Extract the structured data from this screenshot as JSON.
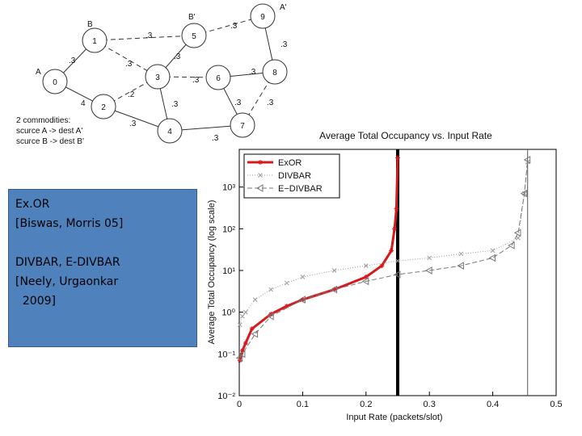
{
  "diagram": {
    "nodes": [
      "0",
      "1",
      "2",
      "3",
      "4",
      "5",
      "6",
      "7",
      "8",
      "9"
    ],
    "tags": [
      "A",
      "B",
      "B'",
      "A'"
    ],
    "edge_labels": [
      ".3",
      "4",
      ".3",
      ".3",
      ".3",
      ".3",
      ".3",
      ".3",
      ".3",
      ".2",
      ".3",
      ".3",
      ".3",
      ".3",
      ".3"
    ],
    "caption": [
      "2 commodities:",
      "scurce A -> dest A'",
      "scurce B -> dest B'"
    ]
  },
  "textbox": {
    "lines": [
      "Ex.OR",
      "[Biswas, Morris 05]",
      "DIVBAR, E-DIVBAR",
      "[Neely, Urgaonkar",
      "  2009]"
    ]
  },
  "chart_data": {
    "type": "line",
    "title": "Average Total Occupancy vs. Input Rate",
    "x_label": "Input Rate (packets/slot)",
    "y_label": "Average Total Occupancy (log scale)",
    "log_y": true,
    "legend": "upper left",
    "xlim": [
      0,
      0.5
    ],
    "xticks": [
      0,
      0.1,
      0.2,
      0.3,
      0.4,
      0.5
    ],
    "ylim": [
      0.01,
      8000
    ],
    "yticks": [
      {
        "value": 0.01,
        "label": "10⁻²"
      },
      {
        "value": 0.1,
        "label": "10⁻¹"
      },
      {
        "value": 1,
        "label": "10⁰"
      },
      {
        "value": 10,
        "label": "10¹"
      },
      {
        "value": 100,
        "label": "10²"
      },
      {
        "value": 1000,
        "label": "10³"
      }
    ],
    "vlines": [
      0.25,
      0.455
    ],
    "series": [
      {
        "name": "ExOR",
        "color": "#d7191c",
        "x": [
          0.001,
          0.005,
          0.01,
          0.02,
          0.05,
          0.075,
          0.1,
          0.15,
          0.2,
          0.225,
          0.24,
          0.245,
          0.248,
          0.25
        ],
        "values": [
          0.07,
          0.12,
          0.18,
          0.4,
          0.9,
          1.4,
          2,
          3.5,
          7,
          13,
          30,
          100,
          300,
          5000
        ]
      },
      {
        "name": "DIVBAR",
        "color": "#999999",
        "x": [
          0.001,
          0.005,
          0.01,
          0.025,
          0.05,
          0.075,
          0.1,
          0.15,
          0.2,
          0.25,
          0.3,
          0.35,
          0.4,
          0.44,
          0.45,
          0.455
        ],
        "values": [
          0.5,
          0.8,
          1,
          2,
          3.5,
          5,
          7,
          10,
          13,
          17,
          20,
          25,
          30,
          60,
          700,
          4000
        ]
      },
      {
        "name": "E−DIVBAR",
        "color": "#777777",
        "x": [
          0.001,
          0.005,
          0.025,
          0.05,
          0.1,
          0.15,
          0.2,
          0.25,
          0.3,
          0.35,
          0.4,
          0.43,
          0.44,
          0.45,
          0.455
        ],
        "values": [
          0.08,
          0.1,
          0.3,
          0.8,
          2,
          3.5,
          5.5,
          8,
          10,
          13,
          20,
          40,
          80,
          700,
          4500
        ]
      }
    ]
  }
}
